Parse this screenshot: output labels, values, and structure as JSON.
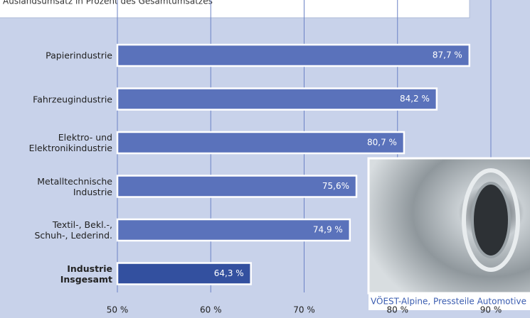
{
  "chart_data": {
    "type": "bar",
    "orientation": "horizontal",
    "title": "Auslandsumsatz in Prozent des Gesamtumsatzes",
    "categories": [
      "Papierindustrie",
      "Fahrzeugindustrie",
      "Elektro- und\nElektronikindustrie",
      "Metalltechnische\nIndustrie",
      "Textil-, Bekl.-,\nSchuh-, Lederind.",
      "Industrie\nInsgesamt"
    ],
    "values": [
      87.7,
      84.2,
      80.7,
      75.6,
      74.9,
      64.3
    ],
    "value_labels": [
      "87,7 %",
      "84,2 %",
      "80,7 %",
      "75,6%",
      "74,9 %",
      "64,3 %"
    ],
    "colors": [
      "#5a72bb",
      "#5a72bb",
      "#5a72bb",
      "#5a72bb",
      "#5a72bb",
      "#33509f"
    ],
    "xlim": [
      50,
      90
    ],
    "xticks": [
      {
        "value": 50,
        "label": "50 %"
      },
      {
        "value": 60,
        "label": "60 %"
      },
      {
        "value": 70,
        "label": "70 %"
      },
      {
        "value": 80,
        "label": "80 %"
      },
      {
        "value": 90,
        "label": "90 %"
      }
    ],
    "grid": true,
    "image_caption": "VÖEST-Alpine, Pressteile Automotive"
  }
}
